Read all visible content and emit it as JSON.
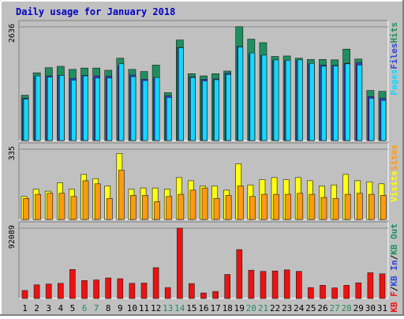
{
  "chart_data": {
    "type": "bar",
    "title": "Daily usage for January 2018",
    "colors": {
      "hits": "#1f8f5f",
      "files": "#2f46d6",
      "pages": "#14d8ff",
      "visits": "#ffff11",
      "sites": "#ff9a12",
      "kbf": "#ee1111",
      "title": "#0000c8",
      "background": "#c0c0c0",
      "weekend": "#1f8f5f",
      "weekday": "#000000"
    },
    "categories": [
      "1",
      "2",
      "3",
      "4",
      "5",
      "6",
      "7",
      "8",
      "9",
      "10",
      "11",
      "12",
      "13",
      "14",
      "15",
      "16",
      "17",
      "18",
      "19",
      "20",
      "21",
      "22",
      "23",
      "24",
      "25",
      "26",
      "27",
      "28",
      "29",
      "30",
      "31"
    ],
    "weekend_days": [
      "6",
      "7",
      "13",
      "14",
      "20",
      "21",
      "27",
      "28"
    ],
    "panels": [
      {
        "name": "hits-files-pages",
        "max_label": "2636",
        "ylim": [
          0,
          2636
        ],
        "legend": [
          {
            "text": "Pages",
            "color": "#14d8ff"
          },
          {
            "text": "Files",
            "color": "#2f46d6"
          },
          {
            "text": "Hits",
            "color": "#1f8f5f"
          }
        ],
        "series": [
          {
            "name": "Hits",
            "color": "#1f8f5f",
            "values": [
              1050,
              1570,
              1690,
              1720,
              1650,
              1680,
              1680,
              1630,
              1910,
              1650,
              1600,
              1750,
              1110,
              2330,
              1550,
              1500,
              1550,
              1610,
              2640,
              2350,
              2270,
              1950,
              1960,
              1910,
              1880,
              1880,
              1870,
              2120,
              1890,
              1160,
              1140
            ]
          },
          {
            "name": "Files",
            "color": "#2f46d6",
            "values": [
              980,
              1480,
              1500,
              1510,
              1440,
              1510,
              1500,
              1490,
              1720,
              1520,
              1420,
              1460,
              1040,
              2160,
              1480,
              1420,
              1430,
              1560,
              2180,
              2000,
              1970,
              1850,
              1850,
              1850,
              1780,
              1750,
              1740,
              1790,
              1800,
              1020,
              980
            ]
          },
          {
            "name": "Pages",
            "color": "#14d8ff",
            "values": [
              960,
              1500,
              1470,
              1510,
              1400,
              1500,
              1450,
              1450,
              1780,
              1480,
              1390,
              1460,
              1000,
              2150,
              1460,
              1380,
              1410,
              1530,
              2170,
              2030,
              1980,
              1870,
              1860,
              1870,
              1790,
              1720,
              1730,
              1780,
              1750,
              980,
              930
            ]
          }
        ]
      },
      {
        "name": "visits-sites",
        "max_label": "335",
        "ylim": [
          0,
          335
        ],
        "legend": [
          {
            "text": "Visits",
            "color": "#ffff11"
          },
          {
            "text": "Sites",
            "color": "#ff9a12"
          }
        ],
        "series": [
          {
            "name": "Visits",
            "color": "#ffff11",
            "values": [
              110,
              145,
              135,
              175,
              145,
              215,
              195,
              160,
              315,
              145,
              150,
              150,
              145,
              200,
              185,
              160,
              160,
              140,
              265,
              165,
              190,
              200,
              190,
              200,
              185,
              160,
              165,
              215,
              185,
              180,
              170
            ]
          },
          {
            "name": "Sites",
            "color": "#ff9a12",
            "values": [
              100,
              120,
              125,
              125,
              110,
              185,
              170,
              100,
              235,
              115,
              115,
              85,
              110,
              120,
              140,
              150,
              100,
              115,
              160,
              110,
              120,
              120,
              120,
              125,
              120,
              105,
              100,
              120,
              125,
              120,
              115
            ]
          }
        ]
      },
      {
        "name": "kbf",
        "max_label": "92089",
        "ylim": [
          0,
          92089
        ],
        "legend": [
          {
            "text": "KB F",
            "color": "#ee1111"
          },
          {
            "text": "/",
            "color": "#000000"
          },
          {
            "text": "KB In",
            "color": "#2f46d6"
          },
          {
            "text": "/",
            "color": "#000000"
          },
          {
            "text": "KB Out",
            "color": "#1f8f5f"
          }
        ],
        "series": [
          {
            "name": "KB F",
            "color": "#ee1111",
            "values": [
              10500,
              17900,
              18900,
              19900,
              38000,
              23500,
              24300,
              26900,
              25900,
              19900,
              20200,
              40400,
              14300,
              92100,
              19600,
              7200,
              9200,
              31500,
              64000,
              37000,
              35500,
              36000,
              37500,
              35500,
              14300,
              17300,
              13900,
              17300,
              20500,
              33700,
              32300
            ]
          }
        ]
      }
    ]
  }
}
